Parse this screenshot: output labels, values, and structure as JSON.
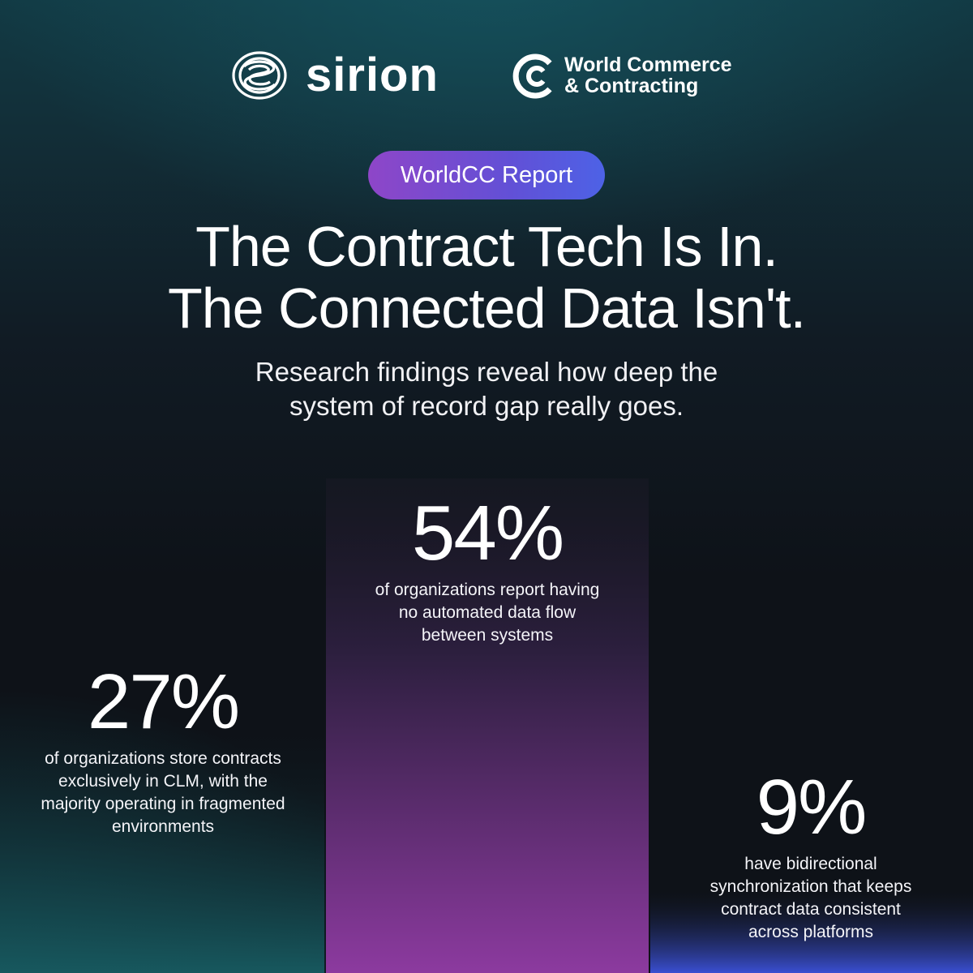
{
  "header": {
    "sirion_logo": {
      "name": "Sirion",
      "wordmark": "sirion",
      "icon": "sirion-swirl-icon"
    },
    "wcc_logo": {
      "name": "World Commerce & Contracting",
      "lines": [
        "World Commerce",
        "& Contracting"
      ],
      "icon": "wcc-ring-icon"
    }
  },
  "badge": {
    "label": "WorldCC Report",
    "colors": [
      "#8e46c8",
      "#4d62e6"
    ]
  },
  "headline": {
    "lines": [
      "The Contract Tech Is In.",
      "The Connected Data Isn't."
    ]
  },
  "subheadline": {
    "lines": [
      "Research findings reveal how deep the",
      "system of record gap really goes."
    ]
  },
  "chart_data": {
    "type": "bar",
    "categories": [
      "automated data flow",
      "stored exclusively in CLM",
      "bidirectional synchronization"
    ],
    "values": [
      54,
      27,
      9
    ],
    "unit": "%",
    "bar_order": [
      "center",
      "left",
      "right"
    ],
    "colors": {
      "54": [
        "#2a1d3a",
        "#8a3a9e"
      ],
      "27": [
        "#0f2a30",
        "#165a60"
      ],
      "9": [
        "#1a1e44",
        "#3a50d4"
      ]
    },
    "stats": [
      {
        "value": "54%",
        "description": [
          "of organizations report having",
          "no automated data flow",
          "between systems"
        ]
      },
      {
        "value": "27%",
        "description": [
          "of organizations store contracts",
          "exclusively in CLM, with the",
          "majority operating in fragmented",
          "environments"
        ]
      },
      {
        "value": "9%",
        "description": [
          "have bidirectional",
          "synchronization that keeps",
          "contract data consistent",
          "across platforms"
        ]
      }
    ]
  }
}
